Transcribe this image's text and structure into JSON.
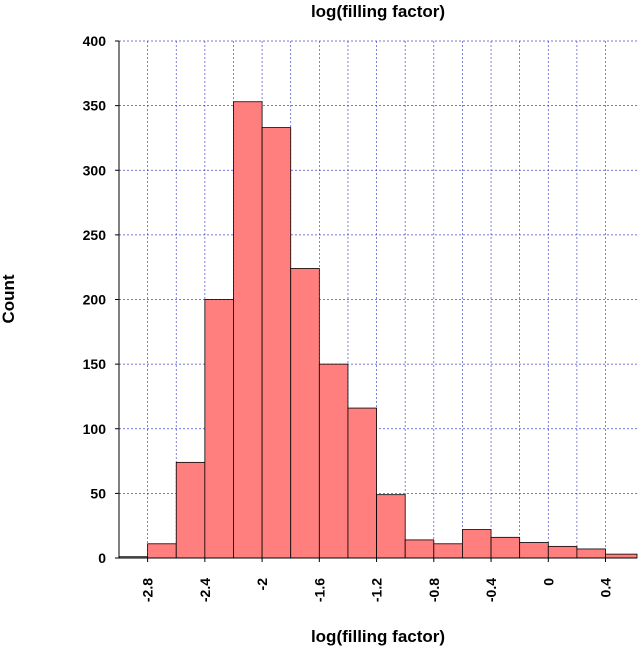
{
  "chart_data": {
    "type": "bar",
    "title": "log(filling factor)",
    "xlabel": "log(filling factor)",
    "ylabel": "Count",
    "xlim": [
      -3.0,
      0.62
    ],
    "ylim": [
      0,
      400
    ],
    "bin_width": 0.2,
    "bins": [
      {
        "x0": -3.0,
        "x1": -2.8,
        "value": 1
      },
      {
        "x0": -2.8,
        "x1": -2.6,
        "value": 11
      },
      {
        "x0": -2.6,
        "x1": -2.4,
        "value": 74
      },
      {
        "x0": -2.4,
        "x1": -2.2,
        "value": 200
      },
      {
        "x0": -2.2,
        "x1": -2.0,
        "value": 353
      },
      {
        "x0": -2.0,
        "x1": -1.8,
        "value": 333
      },
      {
        "x0": -1.8,
        "x1": -1.6,
        "value": 224
      },
      {
        "x0": -1.6,
        "x1": -1.4,
        "value": 150
      },
      {
        "x0": -1.4,
        "x1": -1.2,
        "value": 116
      },
      {
        "x0": -1.2,
        "x1": -1.0,
        "value": 49
      },
      {
        "x0": -1.0,
        "x1": -0.8,
        "value": 14
      },
      {
        "x0": -0.8,
        "x1": -0.6,
        "value": 11
      },
      {
        "x0": -0.6,
        "x1": -0.4,
        "value": 22
      },
      {
        "x0": -0.4,
        "x1": -0.2,
        "value": 16
      },
      {
        "x0": -0.2,
        "x1": 0.0,
        "value": 12
      },
      {
        "x0": 0.0,
        "x1": 0.2,
        "value": 9
      },
      {
        "x0": 0.2,
        "x1": 0.4,
        "value": 7
      },
      {
        "x0": 0.4,
        "x1": 0.62,
        "value": 3
      }
    ],
    "xticks": [
      {
        "value": -2.8,
        "label": "-2.8"
      },
      {
        "value": -2.4,
        "label": "-2.4"
      },
      {
        "value": -2.0,
        "label": "-2"
      },
      {
        "value": -1.6,
        "label": "-1.6"
      },
      {
        "value": -1.2,
        "label": "-1.2"
      },
      {
        "value": -0.8,
        "label": "-0.8"
      },
      {
        "value": -0.4,
        "label": "-0.4"
      },
      {
        "value": 0.0,
        "label": "0"
      },
      {
        "value": 0.4,
        "label": "0.4"
      }
    ],
    "yticks": [
      {
        "value": 0,
        "label": "0"
      },
      {
        "value": 50,
        "label": "50"
      },
      {
        "value": 100,
        "label": "100"
      },
      {
        "value": 150,
        "label": "150"
      },
      {
        "value": 200,
        "label": "200"
      },
      {
        "value": 250,
        "label": "250"
      },
      {
        "value": 300,
        "label": "300"
      },
      {
        "value": 350,
        "label": "350"
      },
      {
        "value": 400,
        "label": "400"
      }
    ],
    "vertical_grid_at": [
      -2.8,
      -2.6,
      -2.4,
      -2.2,
      -2.0,
      -1.8,
      -1.6,
      -1.4,
      -1.2,
      -1.0,
      -0.8,
      -0.6,
      -0.4,
      -0.2,
      0.0,
      0.2,
      0.4
    ],
    "grid": true,
    "bar_color": "#ff7f7f",
    "bar_edge_color": "#000000",
    "grid_color": "#4a4acf"
  }
}
